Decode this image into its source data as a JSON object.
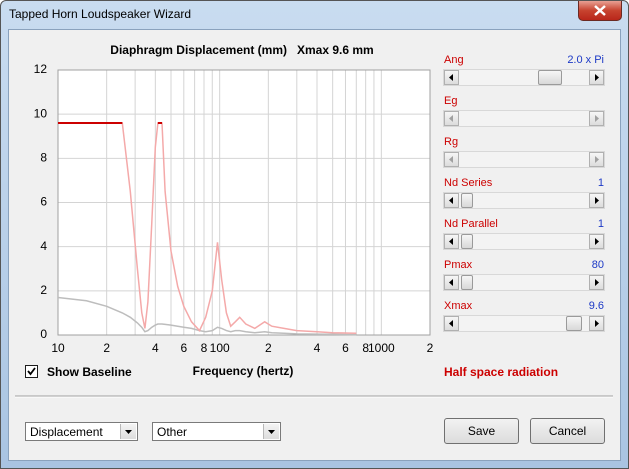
{
  "window": {
    "title": "Tapped Horn Loudspeaker Wizard"
  },
  "chart_data": {
    "type": "line",
    "title": "Diaphragm Displacement (mm)   Xmax 9.6 mm",
    "x_label": "Frequency (hertz)",
    "x": [
      10,
      15,
      20,
      25,
      28,
      31,
      33,
      34.5,
      36,
      38,
      40,
      41.5,
      44,
      46,
      50,
      55,
      60,
      67,
      75,
      82,
      90,
      97,
      103,
      110,
      117,
      125,
      133,
      145,
      165,
      190,
      210,
      250,
      300,
      400,
      500,
      700
    ],
    "series": [
      {
        "color": "#f4a9a9",
        "values": [
          9.6,
          9.6,
          9.6,
          9.6,
          6.5,
          3,
          1,
          0.3,
          1.5,
          5,
          8.5,
          9.6,
          9.6,
          6.5,
          3.8,
          2.2,
          1.3,
          0.6,
          0.2,
          0.8,
          2,
          4.2,
          2.5,
          1,
          0.4,
          0.6,
          0.8,
          0.5,
          0.3,
          0.6,
          0.4,
          0.3,
          0.2,
          0.15,
          0.1,
          0.08
        ]
      },
      {
        "color": "#cc0000",
        "values": [
          9.6,
          9.6,
          9.6,
          9.6,
          null,
          null,
          null,
          null,
          null,
          null,
          null,
          9.6,
          9.6,
          null,
          null,
          null,
          null,
          null,
          null,
          null,
          null,
          null,
          null,
          null,
          null,
          null,
          null,
          null,
          null,
          null,
          null,
          null,
          null,
          null,
          null,
          null
        ]
      },
      {
        "color": "#bdbdbd",
        "values": [
          1.7,
          1.55,
          1.3,
          1.0,
          0.8,
          0.55,
          0.35,
          0.15,
          0.2,
          0.35,
          0.45,
          0.5,
          0.5,
          0.48,
          0.45,
          0.4,
          0.35,
          0.3,
          0.2,
          0.15,
          0.2,
          0.35,
          0.3,
          0.2,
          0.15,
          0.2,
          0.2,
          0.15,
          0.1,
          0.15,
          0.1,
          0.08,
          0.05,
          0.04,
          0.03,
          0.02
        ]
      }
    ],
    "xscale": "log",
    "xlim": [
      10,
      2000
    ],
    "ylim": [
      0,
      12
    ],
    "xticks": [
      {
        "value": 10,
        "label": "10"
      },
      {
        "value": 20,
        "label": "2"
      },
      {
        "value": 30,
        "label": null
      },
      {
        "value": 40,
        "label": "4"
      },
      {
        "value": 50,
        "label": null
      },
      {
        "value": 60,
        "label": "6"
      },
      {
        "value": 70,
        "label": null
      },
      {
        "value": 80,
        "label": "8"
      },
      {
        "value": 90,
        "label": null
      },
      100,
      {
        "value": 200,
        "label": "2"
      },
      {
        "value": 300,
        "label": null
      },
      {
        "value": 400,
        "label": "4"
      },
      {
        "value": 500,
        "label": null
      },
      {
        "value": 600,
        "label": "6"
      },
      {
        "value": 700,
        "label": null
      },
      {
        "value": 800,
        "label": "8"
      },
      {
        "value": 900,
        "label": null
      },
      1000,
      {
        "value": 2000,
        "label": "2"
      }
    ],
    "yticks": [
      0,
      2,
      4,
      6,
      8,
      10,
      12
    ],
    "grid": true
  },
  "controls": {
    "show_baseline": {
      "label": "Show Baseline",
      "checked": true
    },
    "radiation_note": "Half space radiation",
    "sliders": [
      {
        "label": "Ang",
        "value": "2.0 x Pi",
        "enabled": true
      },
      {
        "label": "Eg",
        "enabled": false
      },
      {
        "label": "Rg",
        "enabled": false
      },
      {
        "label": "Nd  Series",
        "value": 1,
        "enabled": true
      },
      {
        "label": "Nd  Parallel",
        "value": 1,
        "enabled": true
      },
      {
        "label": "Pmax",
        "value": 80,
        "enabled": true
      },
      {
        "label": "Xmax",
        "value": 9.6,
        "enabled": true
      }
    ],
    "dropdowns": [
      "Displacement",
      "Other"
    ],
    "buttons": [
      "Save",
      "Cancel"
    ]
  }
}
